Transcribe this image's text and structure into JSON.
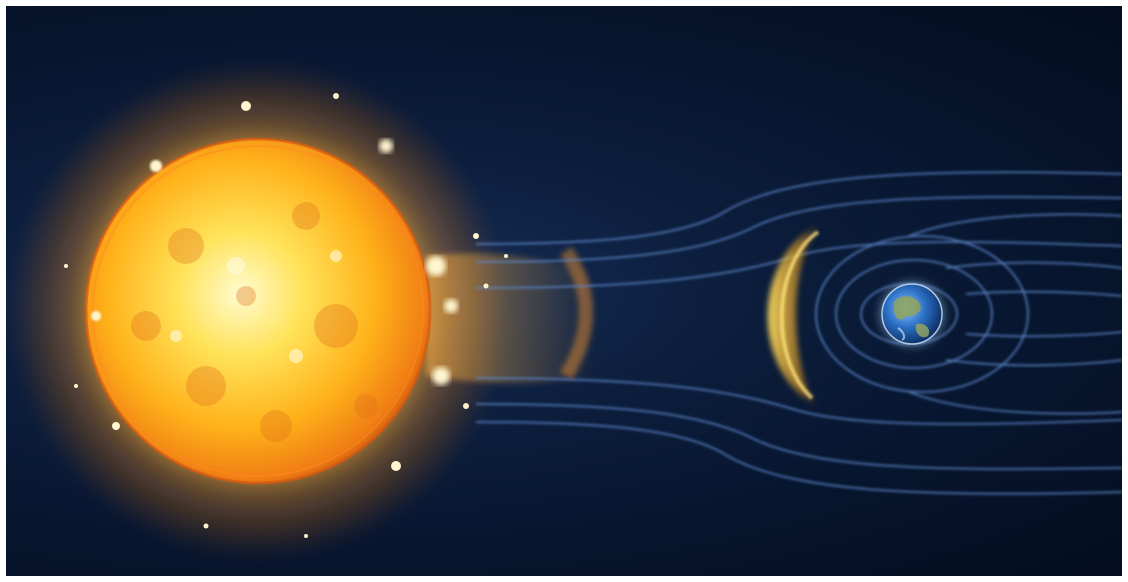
{
  "image": {
    "subject": "sun-and-earth-magnetosphere",
    "colors": {
      "space_dark": "#06142c",
      "space_mid": "#0f2a52",
      "sun_core": "#fff7b0",
      "sun_mid": "#ffc21a",
      "sun_edge": "#e06a10",
      "field_lines": "#5d87c9",
      "bow_shock": "#ffd23a",
      "earth_ocean": "#2a6fc4",
      "earth_land": "#8fa45a"
    }
  }
}
